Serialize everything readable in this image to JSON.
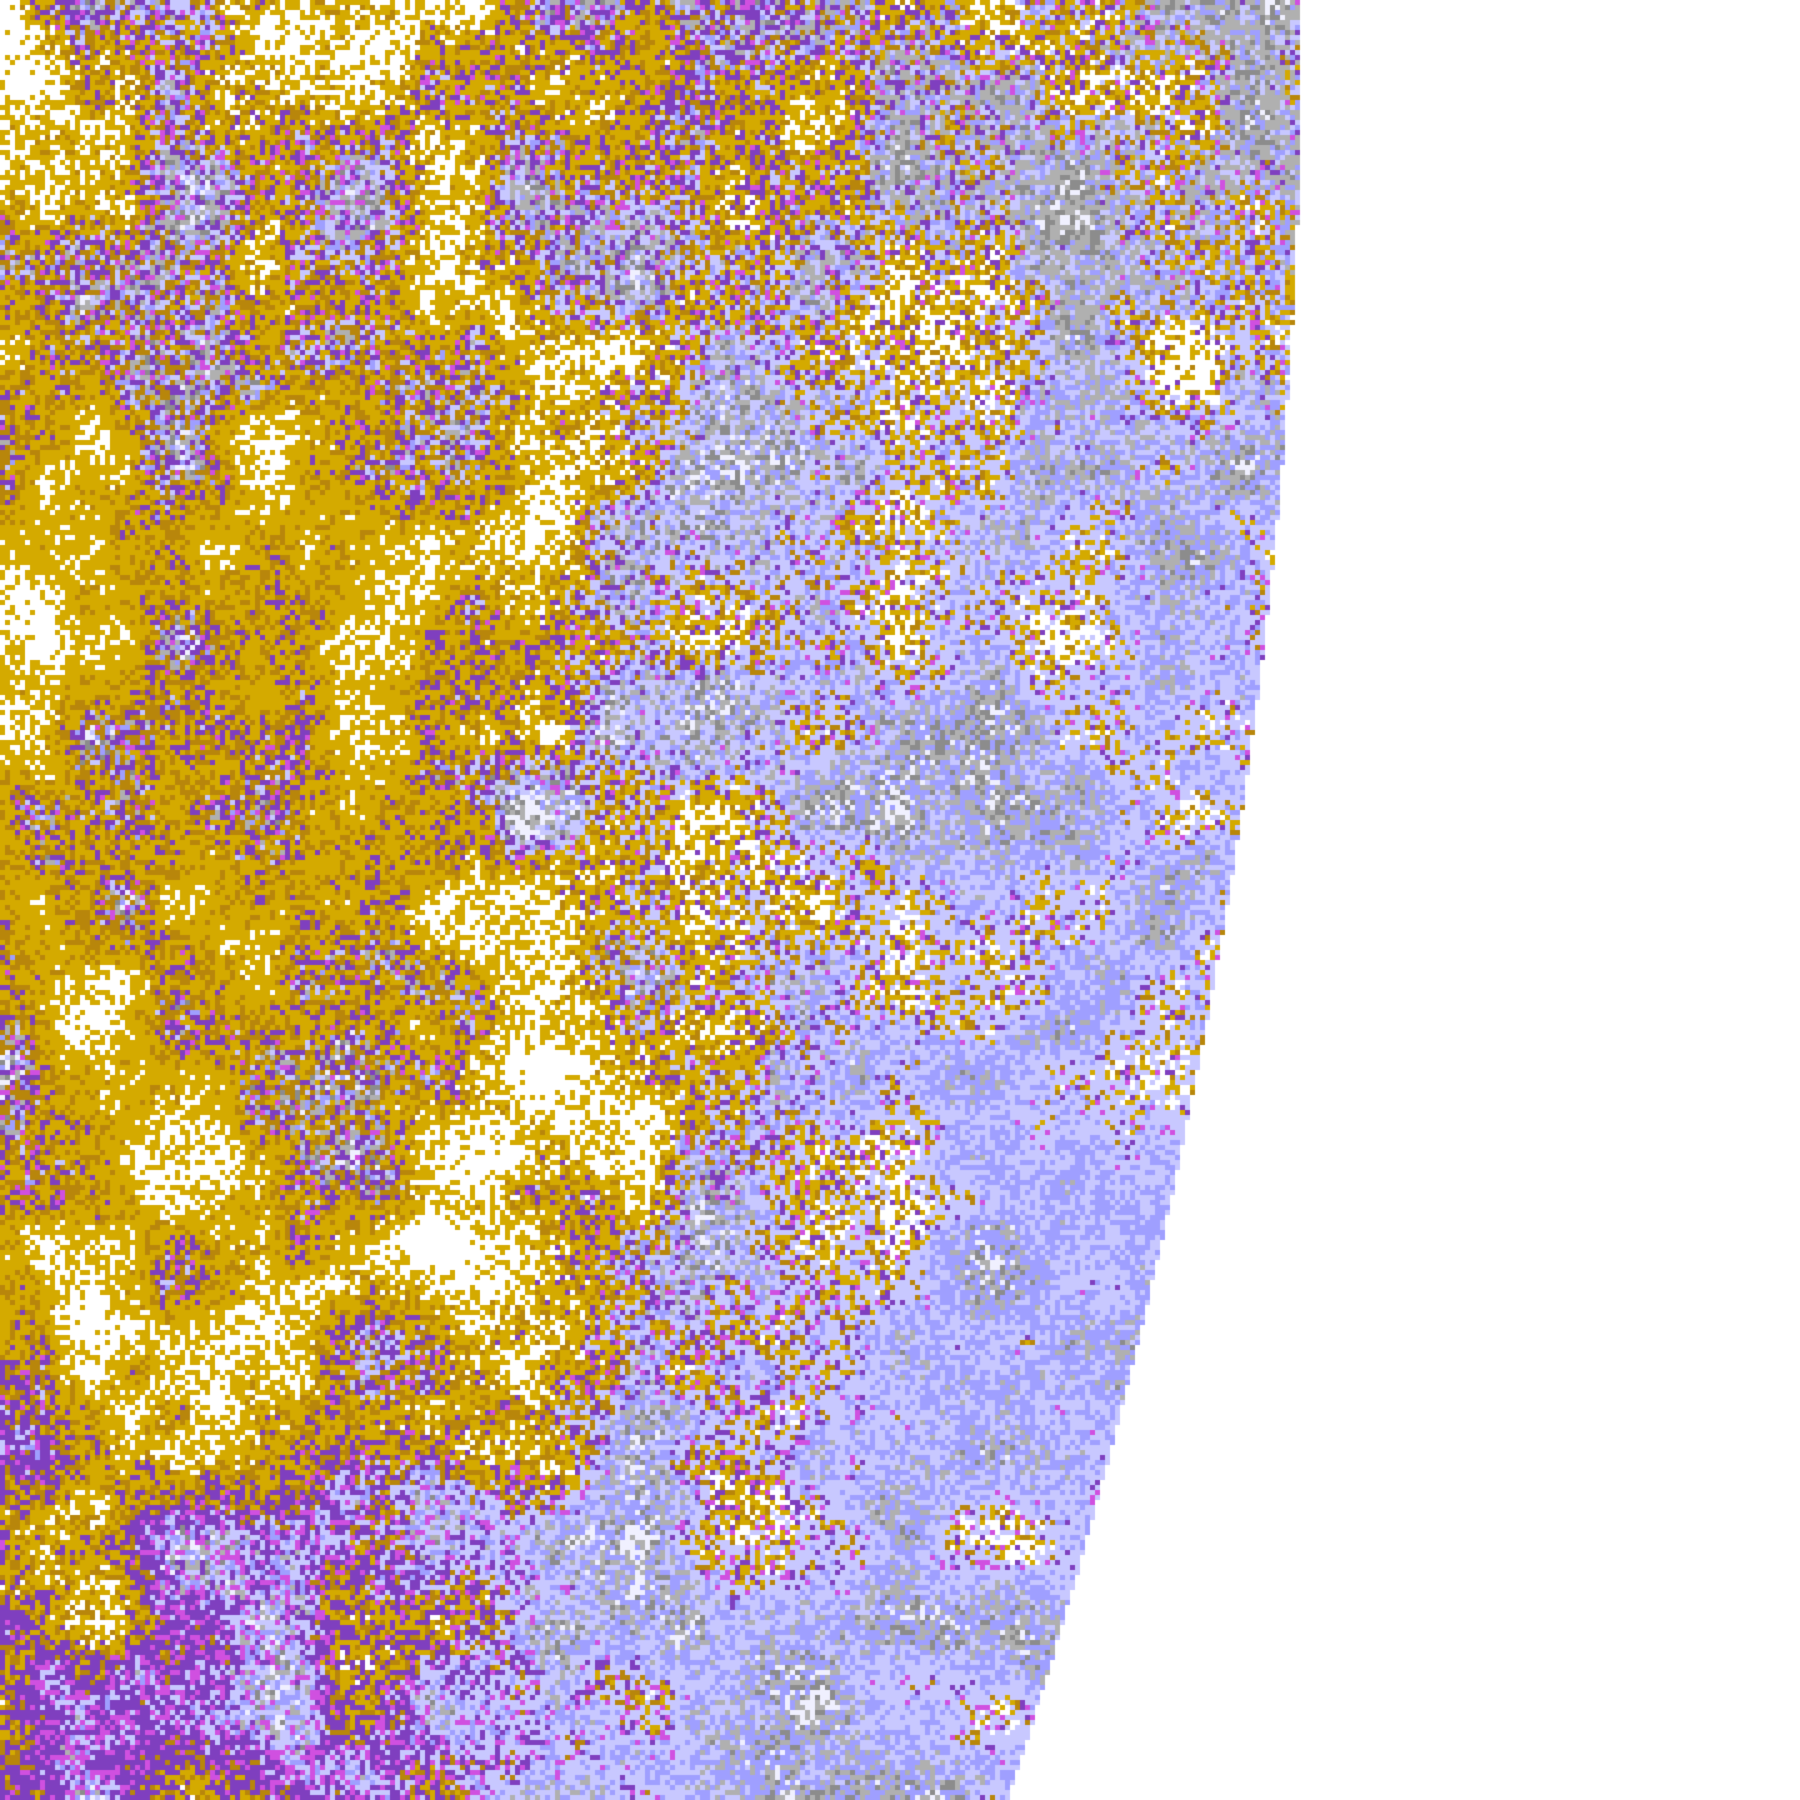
{
  "map": {
    "type": "satellite cloud classification image",
    "palette": {
      "background": "#ffffff",
      "gold": "#d4aa00",
      "dark_gold": "#b8860b",
      "purple": "#7f3fbf",
      "magenta": "#d050e0",
      "lavender": "#c8c8ff",
      "periwinkle": "#9f9fff",
      "light_gray": "#b0b0b0",
      "gray": "#8c8c8c",
      "pale": "#f0f0ff"
    }
  }
}
